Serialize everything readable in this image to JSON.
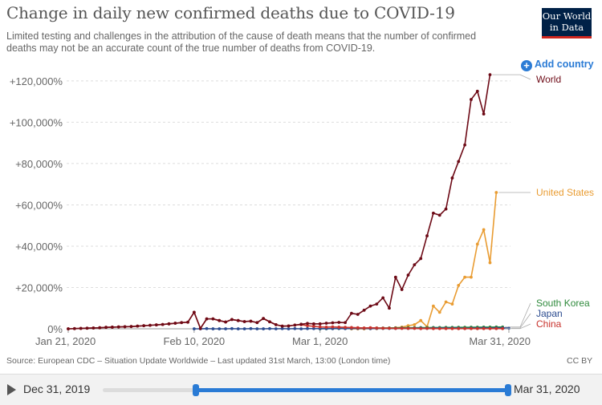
{
  "header": {
    "title": "Change in daily new confirmed deaths due to COVID-19",
    "subtitle": "Limited testing and challenges in the attribution of the cause of death means that the number of confirmed deaths may not be an accurate count of the true number of deaths from COVID-19.",
    "logo_line1": "Our World",
    "logo_line2": "in Data",
    "add_country_label": "Add country"
  },
  "footer": {
    "source": "Source: European CDC – Situation Update Worldwide – Last updated 31st March, 13:00 (London time)",
    "license": "CC BY"
  },
  "timeline": {
    "start_label": "Dec 31, 2019",
    "end_label": "Mar 31, 2020",
    "range_start_fraction": 0.23,
    "range_end_fraction": 1.0
  },
  "chart_data": {
    "type": "line",
    "x_start_date": "2020-01-21",
    "x_tick_labels": [
      "Jan 21, 2020",
      "Feb 10, 2020",
      "Mar 1, 2020",
      "Mar 31, 2020"
    ],
    "x_tick_day_index": [
      0,
      20,
      40,
      70
    ],
    "y_tick_labels": [
      "0%",
      "+20,000%",
      "+40,000%",
      "+60,000%",
      "+80,000%",
      "+100,000%",
      "+120,000%"
    ],
    "y_tick_values": [
      0,
      20000,
      40000,
      60000,
      80000,
      100000,
      120000
    ],
    "ylim": [
      0,
      125000
    ],
    "grid": "horizontal",
    "series": [
      {
        "name": "World",
        "color": "#6d0a16",
        "start_day": 0,
        "values": [
          0,
          100,
          200,
          300,
          400,
          500,
          700,
          800,
          900,
          1000,
          1100,
          1300,
          1500,
          1700,
          1900,
          2100,
          2400,
          2700,
          3000,
          3200,
          8000,
          200,
          4800,
          4800,
          4000,
          3300,
          4500,
          4000,
          3500,
          3700,
          3000,
          5000,
          3400,
          2000,
          1300,
          1400,
          1800,
          2200,
          2600,
          2400,
          2400,
          2700,
          2900,
          3100,
          3000,
          7500,
          7000,
          9000,
          11000,
          12000,
          15000,
          10000,
          25000,
          19000,
          26000,
          31000,
          34000,
          45000,
          56000,
          55000,
          58000,
          73000,
          81000,
          89000,
          111000,
          115000,
          104000,
          123000
        ]
      },
      {
        "name": "United States",
        "color": "#e99c32",
        "start_day": 45,
        "values": [
          0,
          0,
          0,
          100,
          100,
          200,
          300,
          500,
          800,
          1500,
          2000,
          4000,
          1000,
          11000,
          8000,
          13000,
          12000,
          21000,
          25000,
          25000,
          41000,
          48000,
          32000,
          66000
        ]
      },
      {
        "name": "South Korea",
        "color": "#2f8a3c",
        "start_day": 40,
        "values": [
          0,
          50,
          100,
          150,
          200,
          250,
          300,
          320,
          350,
          380,
          400,
          420,
          450,
          480,
          500,
          520,
          550,
          580,
          600,
          620,
          650,
          680,
          700,
          720,
          750,
          770,
          800,
          820,
          850,
          870
        ]
      },
      {
        "name": "Japan",
        "color": "#2b4b8f",
        "start_day": 20,
        "values": [
          0,
          0,
          100,
          0,
          0,
          0,
          100,
          0,
          0,
          100,
          0,
          0,
          100,
          0,
          100,
          0,
          100,
          0,
          100,
          100,
          100,
          100,
          100,
          200,
          100,
          200,
          200,
          200,
          100,
          200,
          200,
          200,
          200,
          300,
          200,
          300,
          300,
          200,
          300,
          300,
          300,
          300,
          300,
          200,
          300,
          300,
          400,
          300,
          400,
          400,
          400
        ]
      },
      {
        "name": "China",
        "color": "#c8322c",
        "start_day": 0,
        "values": [
          0,
          100,
          200,
          300,
          400,
          500,
          700,
          800,
          900,
          1000,
          1100,
          1300,
          1500,
          1700,
          1900,
          2100,
          2400,
          2700,
          3000,
          3200,
          8000,
          200,
          4800,
          4800,
          4000,
          3300,
          4500,
          4000,
          3500,
          3700,
          3000,
          5000,
          3400,
          2000,
          1300,
          1400,
          1800,
          2000,
          1500,
          1200,
          900,
          800,
          900,
          800,
          700,
          600,
          500,
          400,
          500,
          400,
          300,
          300,
          200,
          200,
          200,
          200,
          100,
          200,
          100,
          100,
          100,
          100,
          100,
          100,
          100,
          100,
          100,
          100,
          100,
          100
        ]
      }
    ]
  }
}
